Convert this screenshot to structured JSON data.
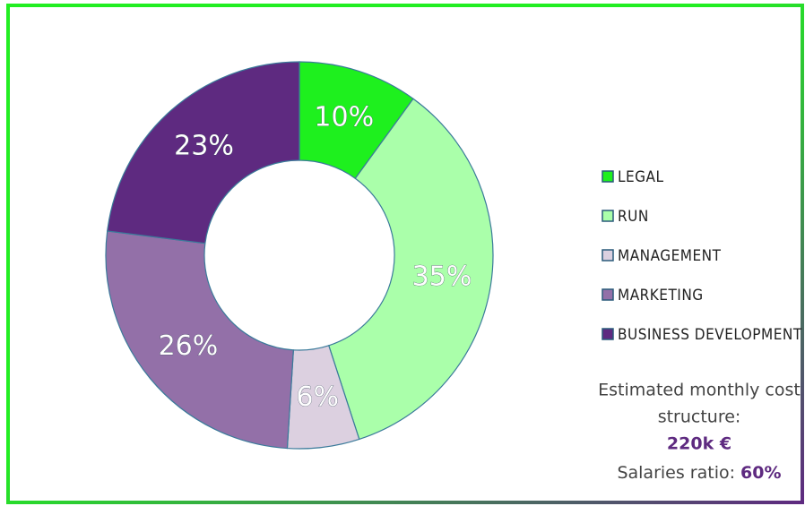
{
  "chart_data": {
    "type": "donut",
    "categories": [
      "LEGAL",
      "RUN",
      "MANAGEMENT",
      "MARKETING",
      "BUSINESS DEVELOPMENT"
    ],
    "values": [
      10,
      35,
      6,
      26,
      23
    ],
    "value_labels": [
      "10%",
      "35%",
      "6%",
      "26%",
      "23%"
    ],
    "colors": [
      "#1ef01e",
      "#aaffaa",
      "#dcd0e0",
      "#9370a8",
      "#5e2a80"
    ],
    "legend": "right",
    "annotations": {
      "line1": "Estimated monthly cost",
      "line2": "structure:",
      "amount": "220k €",
      "ratio_label": "Salaries ratio: ",
      "ratio_value": "60%"
    }
  }
}
